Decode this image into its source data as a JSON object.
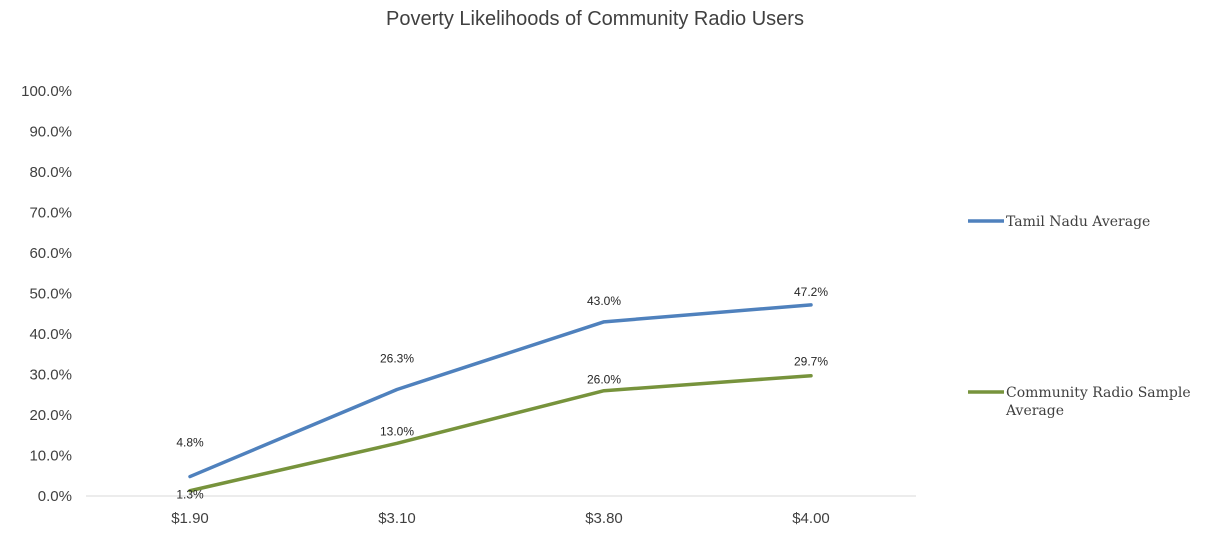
{
  "chart_data": {
    "type": "line",
    "title": "Poverty Likelihoods of Community Radio Users",
    "xlabel": "",
    "ylabel": "",
    "categories": [
      "$1.90",
      "$3.10",
      "$3.80",
      "$4.00"
    ],
    "y_tick_labels": [
      "0.0%",
      "10.0%",
      "20.0%",
      "30.0%",
      "40.0%",
      "50.0%",
      "60.0%",
      "70.0%",
      "80.0%",
      "90.0%",
      "100.0%"
    ],
    "ylim": [
      0,
      100
    ],
    "y_unit": "%",
    "grid": false,
    "legend_position": "right",
    "series": [
      {
        "name": "Tamil Nadu Average",
        "legend_lines": [
          "Tamil Nadu Average"
        ],
        "color": "#4f81bd",
        "values": [
          4.8,
          26.3,
          43.0,
          47.2
        ],
        "labels": [
          "4.8%",
          "26.3%",
          "43.0%",
          "47.2%"
        ]
      },
      {
        "name": "Community Radio Sample Average",
        "legend_lines": [
          "Community Radio Sample",
          "Average"
        ],
        "color": "#77933c",
        "values": [
          1.3,
          13.0,
          26.0,
          29.7
        ],
        "labels": [
          "1.3%",
          "13.0%",
          "26.0%",
          "29.7%"
        ]
      }
    ]
  }
}
